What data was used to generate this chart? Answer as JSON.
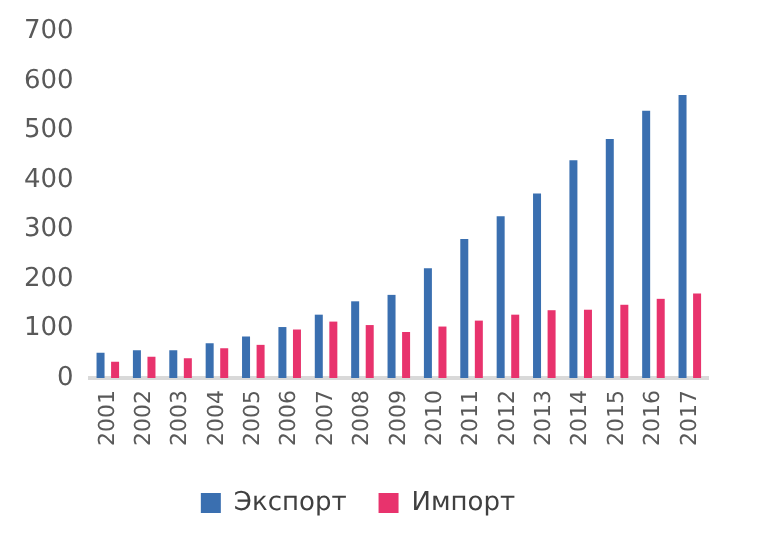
{
  "chart_data": {
    "type": "bar",
    "categories": [
      "2001",
      "2002",
      "2003",
      "2004",
      "2005",
      "2006",
      "2007",
      "2008",
      "2009",
      "2010",
      "2011",
      "2012",
      "2013",
      "2014",
      "2015",
      "2016",
      "2017"
    ],
    "series": [
      {
        "name": "Экспорт",
        "color": "#3a6fb0",
        "values": [
          51,
          56,
          56,
          70,
          84,
          103,
          128,
          155,
          168,
          222,
          281,
          327,
          373,
          440,
          483,
          540,
          572
        ]
      },
      {
        "name": "Импорт",
        "color": "#e8336d",
        "values": [
          33,
          43,
          40,
          60,
          67,
          98,
          114,
          107,
          93,
          104,
          116,
          128,
          137,
          138,
          148,
          160,
          171
        ]
      }
    ],
    "ylim": [
      0,
      700
    ],
    "yticks": [
      0,
      100,
      200,
      300,
      400,
      500,
      600,
      700
    ],
    "grid": false,
    "legend": "bottom"
  }
}
